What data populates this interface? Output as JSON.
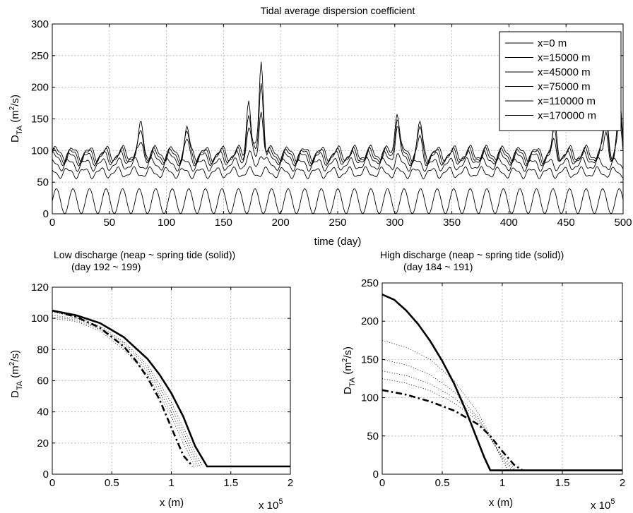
{
  "chart_data": [
    {
      "type": "line",
      "title": "Tidal average dispersion coefficient",
      "xlabel": "time (day)",
      "ylabel_main": "D",
      "ylabel_sub": "TA",
      "ylabel_unit_pre": " (m",
      "ylabel_unit_sup": "2",
      "ylabel_unit_post": "/s)",
      "xlim": [
        0,
        500
      ],
      "ylim": [
        0,
        300
      ],
      "xticks": [
        0,
        50,
        100,
        150,
        200,
        250,
        300,
        350,
        400,
        450,
        500
      ],
      "yticks": [
        0,
        50,
        100,
        150,
        200,
        250,
        300
      ],
      "grid": true,
      "legend_position": "top-right",
      "line_color": "#000000",
      "series": [
        {
          "name": "x=0 m",
          "base": 95,
          "amp": 10,
          "spikes": [
            [
              78,
              45
            ],
            [
              118,
              35
            ],
            [
              172,
              90
            ],
            [
              183,
              150
            ],
            [
              302,
              75
            ],
            [
              322,
              45
            ],
            [
              440,
              40
            ],
            [
              485,
              70
            ],
            [
              497,
              80
            ]
          ]
        },
        {
          "name": "x=15000 m",
          "base": 92,
          "amp": 10,
          "spikes": [
            [
              78,
              40
            ],
            [
              118,
              32
            ],
            [
              172,
              70
            ],
            [
              183,
              120
            ],
            [
              302,
              65
            ],
            [
              322,
              40
            ],
            [
              440,
              35
            ],
            [
              485,
              60
            ],
            [
              497,
              70
            ]
          ]
        },
        {
          "name": "x=45000 m",
          "base": 88,
          "amp": 9,
          "spikes": [
            [
              78,
              30
            ],
            [
              118,
              25
            ],
            [
              172,
              50
            ],
            [
              183,
              80
            ],
            [
              302,
              50
            ],
            [
              322,
              30
            ],
            [
              440,
              28
            ],
            [
              485,
              45
            ],
            [
              497,
              55
            ]
          ]
        },
        {
          "name": "x=75000 m",
          "base": 78,
          "amp": 8,
          "spikes": [
            [
              172,
              15
            ],
            [
              183,
              20
            ],
            [
              302,
              10
            ]
          ]
        },
        {
          "name": "x=110000 m",
          "base": 65,
          "amp": 7,
          "spikes": []
        },
        {
          "name": "x=170000 m",
          "base": 20,
          "amp": 18,
          "spikes": []
        }
      ]
    },
    {
      "type": "line",
      "title": "Low discharge (neap ~ spring tide (solid))",
      "subtitle": "(day 192 ~ 199)",
      "xlabel": "x (m)",
      "xscale_note_base": "x 10",
      "xscale_note_exp": "5",
      "ylabel_main": "D",
      "ylabel_sub": "TA",
      "ylabel_unit_pre": " (m",
      "ylabel_unit_sup": "2",
      "ylabel_unit_post": "/s)",
      "xlim": [
        0,
        2
      ],
      "ylim": [
        0,
        120
      ],
      "xticks": [
        0,
        0.5,
        1,
        1.5,
        2
      ],
      "yticks": [
        0,
        20,
        40,
        60,
        80,
        100,
        120
      ],
      "grid": true,
      "solid": {
        "x": [
          0,
          0.2,
          0.4,
          0.6,
          0.8,
          0.9,
          1.0,
          1.1,
          1.2,
          1.3,
          2.0
        ],
        "y": [
          105,
          102,
          97,
          88,
          74,
          64,
          52,
          37,
          18,
          5,
          5
        ]
      },
      "dashdot": {
        "x": [
          0,
          0.2,
          0.4,
          0.6,
          0.7,
          0.8,
          0.9,
          1.0,
          1.1,
          1.18
        ],
        "y": [
          105,
          101,
          94,
          82,
          73,
          62,
          48,
          30,
          12,
          5
        ]
      },
      "dotted": [
        {
          "x": [
            0,
            0.2,
            0.4,
            0.6,
            0.8,
            1.0,
            1.1,
            1.2,
            1.26
          ],
          "y": [
            104,
            101,
            95,
            85,
            70,
            46,
            30,
            14,
            5
          ]
        },
        {
          "x": [
            0,
            0.2,
            0.4,
            0.6,
            0.8,
            1.0,
            1.1,
            1.2,
            1.24
          ],
          "y": [
            102,
            100,
            94,
            84,
            68,
            43,
            27,
            11,
            5
          ]
        },
        {
          "x": [
            0,
            0.2,
            0.4,
            0.6,
            0.8,
            1.0,
            1.1,
            1.22
          ],
          "y": [
            101,
            99,
            93,
            82,
            66,
            40,
            24,
            5
          ]
        },
        {
          "x": [
            0,
            0.2,
            0.4,
            0.6,
            0.8,
            1.0,
            1.1,
            1.2
          ],
          "y": [
            100,
            98,
            92,
            80,
            64,
            37,
            20,
            5
          ]
        }
      ]
    },
    {
      "type": "line",
      "title": "High discharge (neap ~ spring tide (solid))",
      "subtitle": "(day 184 ~ 191)",
      "xlabel": "x (m)",
      "xscale_note_base": "x 10",
      "xscale_note_exp": "5",
      "ylabel_main": "D",
      "ylabel_sub": "TA",
      "ylabel_unit_pre": " (m",
      "ylabel_unit_sup": "2",
      "ylabel_unit_post": "/s)",
      "xlim": [
        0,
        2
      ],
      "ylim": [
        0,
        250
      ],
      "xticks": [
        0,
        0.5,
        1,
        1.5,
        2
      ],
      "yticks": [
        0,
        50,
        100,
        150,
        200,
        250
      ],
      "grid": true,
      "solid": {
        "x": [
          0,
          0.1,
          0.2,
          0.3,
          0.4,
          0.5,
          0.6,
          0.7,
          0.75,
          0.8,
          0.85,
          0.9,
          2.0
        ],
        "y": [
          235,
          228,
          214,
          196,
          174,
          148,
          118,
          82,
          62,
          42,
          22,
          5,
          5
        ]
      },
      "dashdot": {
        "x": [
          0,
          0.2,
          0.4,
          0.6,
          0.8,
          0.9,
          1.0,
          1.1,
          1.17
        ],
        "y": [
          110,
          104,
          95,
          83,
          65,
          50,
          30,
          12,
          5
        ]
      },
      "dotted": [
        {
          "x": [
            0,
            0.2,
            0.4,
            0.6,
            0.8,
            0.9,
            1.0,
            1.05
          ],
          "y": [
            175,
            166,
            150,
            122,
            80,
            50,
            18,
            5
          ]
        },
        {
          "x": [
            0,
            0.2,
            0.4,
            0.6,
            0.8,
            0.9,
            1.0,
            1.08
          ],
          "y": [
            150,
            143,
            130,
            108,
            74,
            48,
            20,
            5
          ]
        },
        {
          "x": [
            0,
            0.2,
            0.4,
            0.6,
            0.8,
            0.9,
            1.0,
            1.1
          ],
          "y": [
            135,
            129,
            118,
            100,
            72,
            48,
            22,
            5
          ]
        },
        {
          "x": [
            0,
            0.2,
            0.4,
            0.6,
            0.8,
            0.9,
            1.0,
            1.12
          ],
          "y": [
            125,
            119,
            109,
            93,
            69,
            47,
            24,
            5
          ]
        }
      ]
    }
  ]
}
